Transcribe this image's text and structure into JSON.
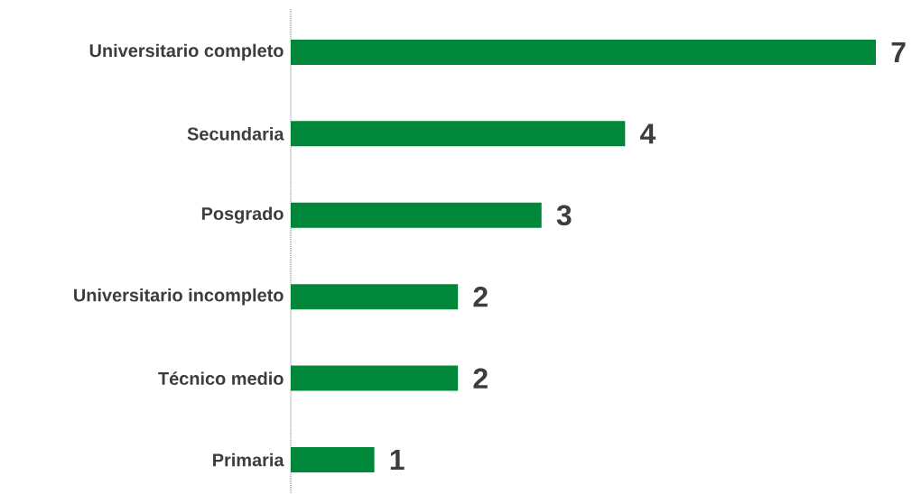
{
  "chart_data": {
    "type": "bar",
    "orientation": "horizontal",
    "categories": [
      "Universitario completo",
      "Secundaria",
      "Posgrado",
      "Universitario incompleto",
      "Técnico medio",
      "Primaria"
    ],
    "values": [
      7,
      4,
      3,
      2,
      2,
      1
    ],
    "color": "#00873a",
    "xlim": [
      0,
      7
    ],
    "data_labels": true
  }
}
